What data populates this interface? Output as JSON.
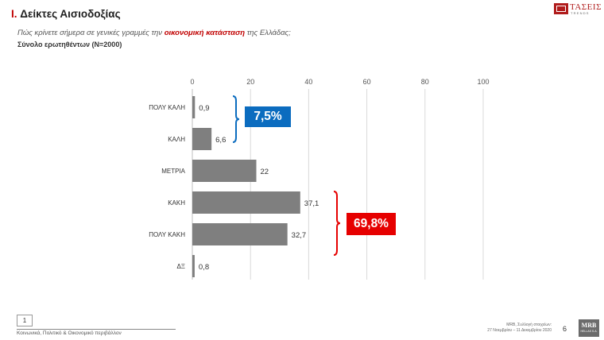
{
  "header": {
    "title_prefix": "I.",
    "title_text": "Δείκτες Αισιοδοξίας",
    "question_before": "Πώς κρίνετε σήμερα σε γενικές γραμμές την ",
    "question_highlight": "οικονομική κατάσταση",
    "question_after": " της Ελλάδας;",
    "sample": "Σύνολο ερωτηθέντων (N=2000)"
  },
  "logo": {
    "brand": "ΤΑΣΕΙΣ",
    "tagline": "TRENDS"
  },
  "chart_data": {
    "type": "bar",
    "orientation": "horizontal",
    "categories": [
      "ΠΟΛΥ ΚΑΛΗ",
      "ΚΑΛΗ",
      "ΜΕΤΡΙΑ",
      "ΚΑΚΗ",
      "ΠΟΛΥ ΚΑΚΗ",
      "ΔΞ"
    ],
    "values": [
      0.9,
      6.6,
      22,
      37.1,
      32.7,
      0.8
    ],
    "value_labels": [
      "0,9",
      "6,6",
      "22",
      "37,1",
      "32,7",
      "0,8"
    ],
    "xlim": [
      0,
      100
    ],
    "xticks": [
      "0",
      "20",
      "40",
      "60",
      "80",
      "100"
    ],
    "grid": true,
    "bar_color": "#7f7f7f",
    "annotations": [
      {
        "label": "7,5%",
        "covers": [
          "ΠΟΛΥ ΚΑΛΗ",
          "ΚΑΛΗ"
        ],
        "color": "#0b6cbf"
      },
      {
        "label": "69,8%",
        "covers": [
          "ΚΑΚΗ",
          "ΠΟΛΥ ΚΑΚΗ"
        ],
        "color": "#e60000"
      }
    ]
  },
  "footer": {
    "section_number": "1",
    "section_name": "Κοινωνικά, Πολιτικό & Οικονομικό περιβάλλον",
    "fieldwork_line1": "MRB, Συλλογή στοιχείων:",
    "fieldwork_line2": "27 Νοεμβρίου  –  11 Δεκεμβρίου 2020",
    "page_number": "6",
    "mrb_logo": "MRB",
    "mrb_sub": "HELLAS S.A."
  }
}
